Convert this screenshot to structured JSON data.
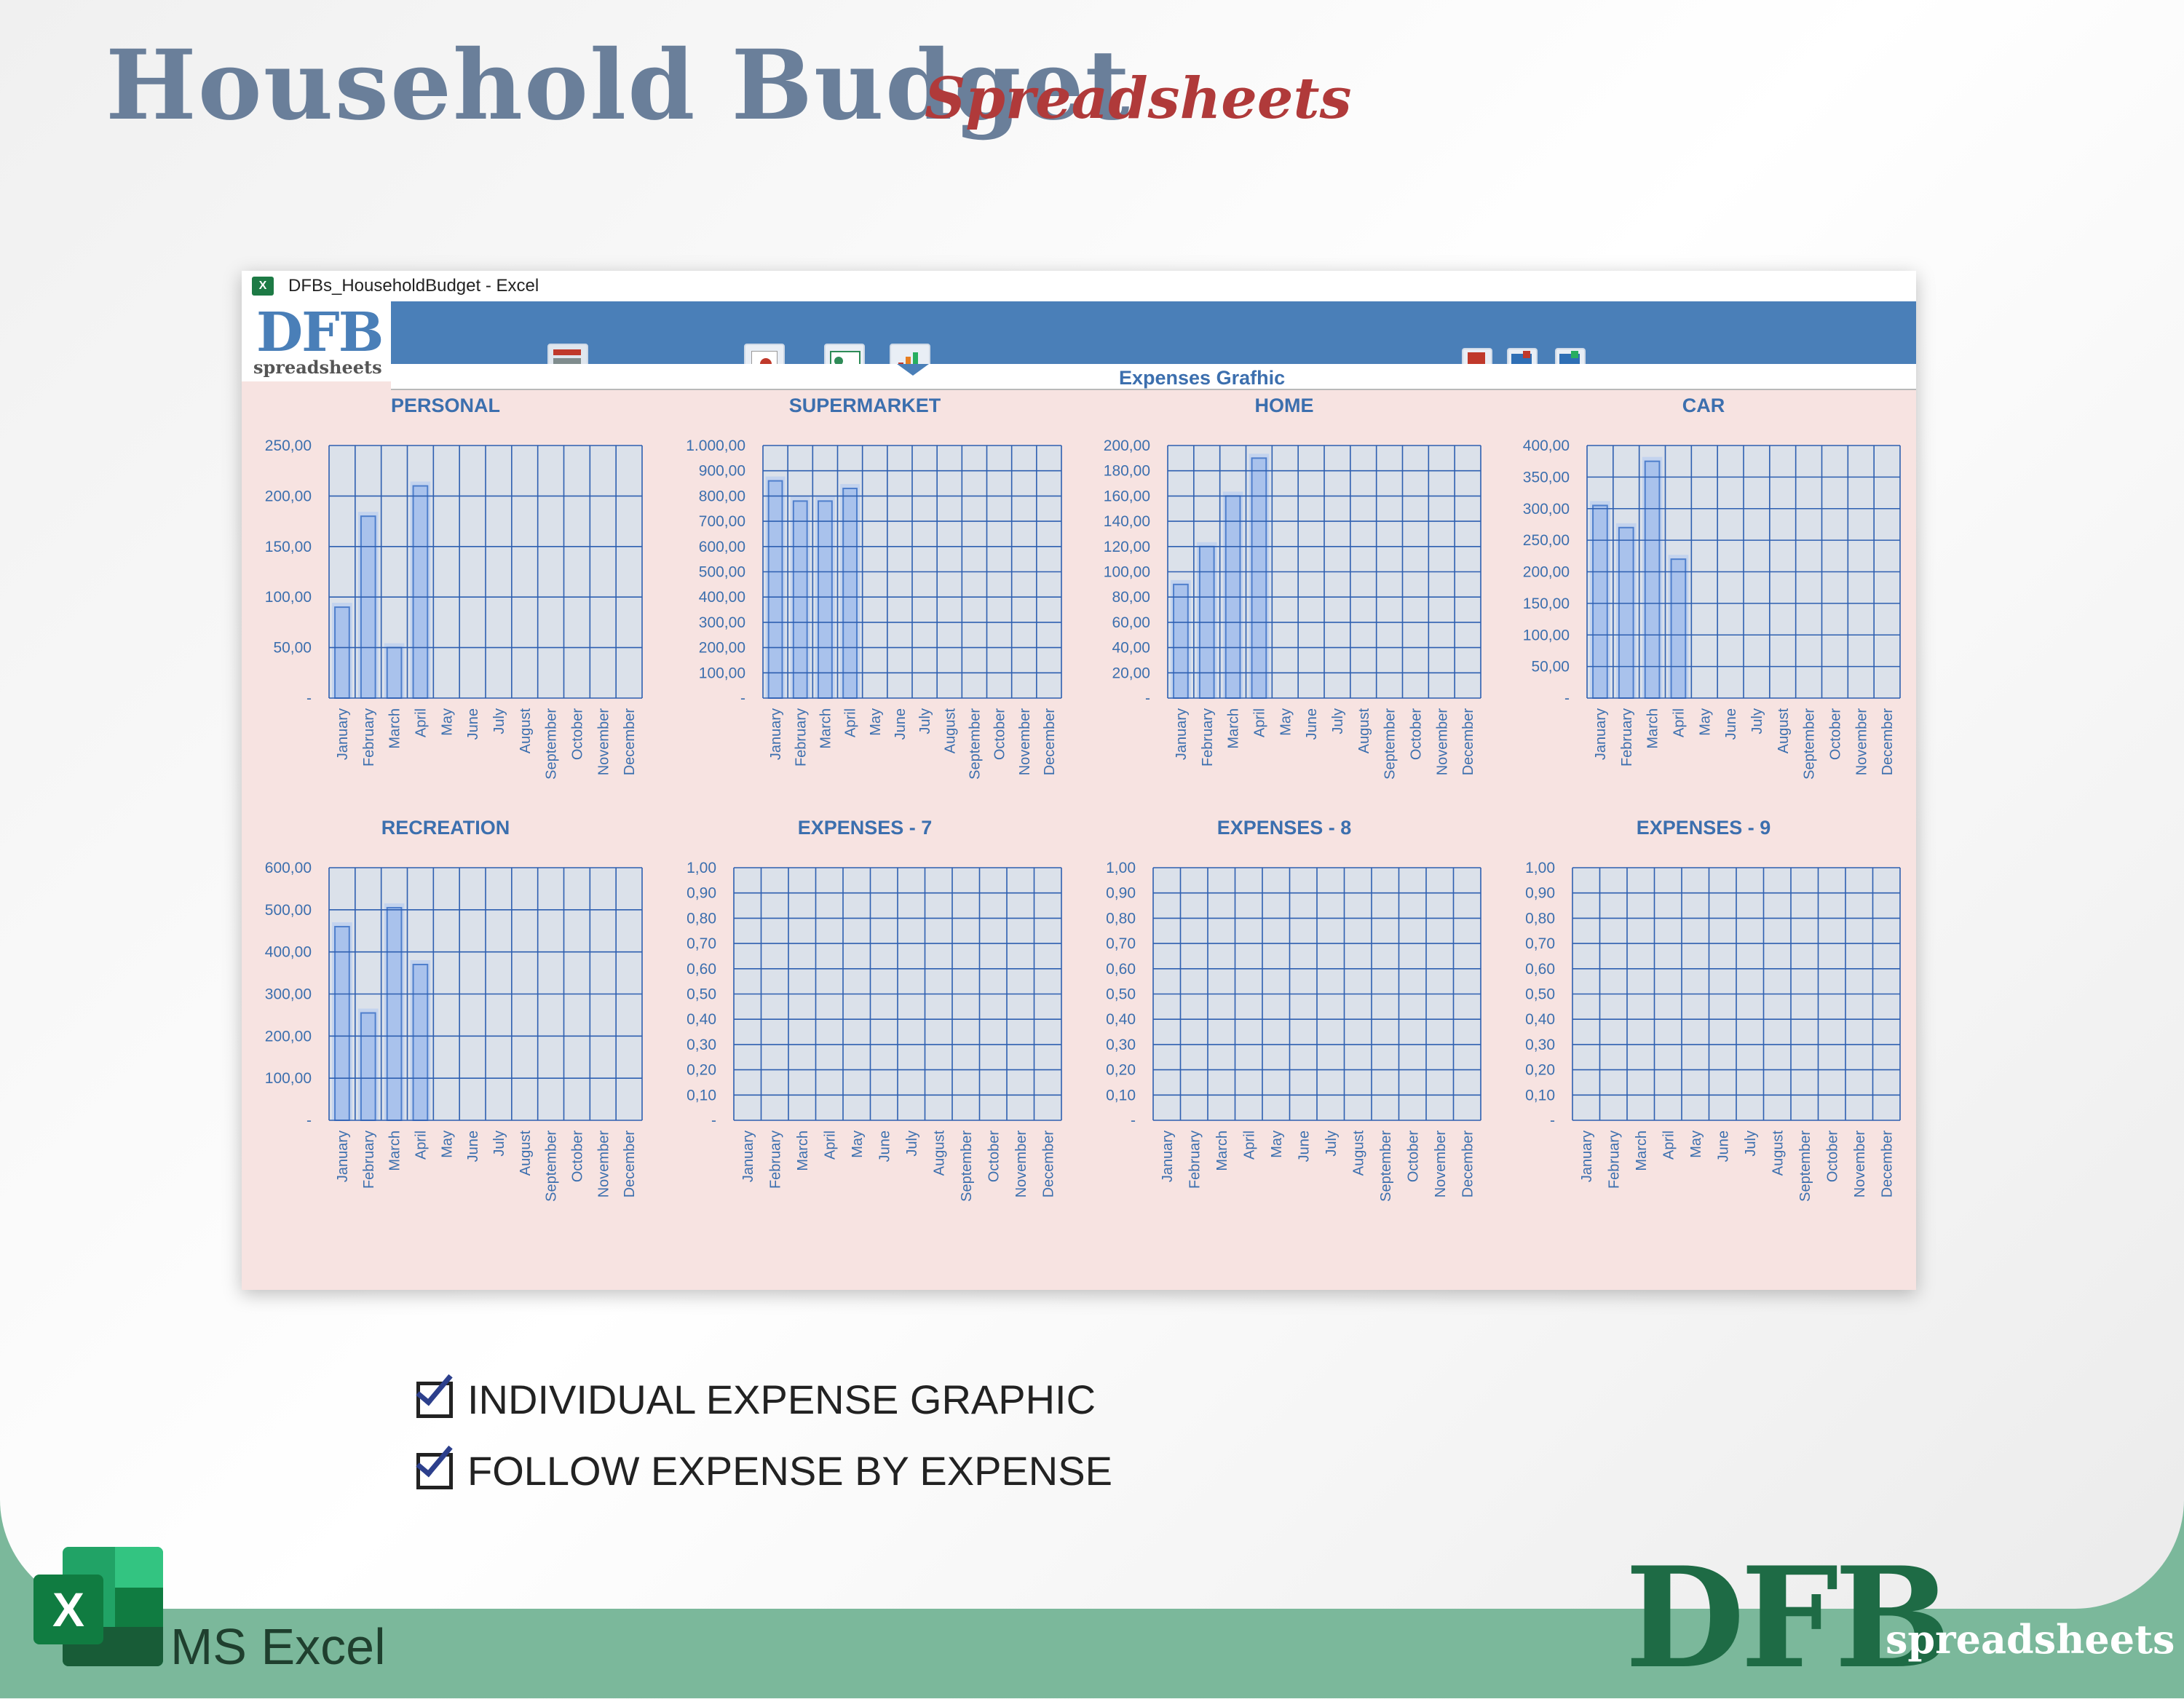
{
  "header": {
    "title": "Household Budget",
    "subtitle": "Spreadsheets"
  },
  "window": {
    "title": "DFBs_HouseholdBudget - Excel",
    "logo_main": "DFB",
    "logo_sub": "spreadsheets",
    "sheet_title": "Expenses Grafhic"
  },
  "ribbon_icons": [
    "budget-calculator-icon",
    "report-icon",
    "dashboard-icon",
    "chart-report-icon",
    "save-icon",
    "export-icon",
    "import-icon"
  ],
  "bullets": [
    "INDIVIDUAL EXPENSE GRAPHIC",
    "FOLLOW EXPENSE BY EXPENSE"
  ],
  "footer": {
    "app": "MS Excel",
    "brand": "DFB",
    "brand_sub": "spreadsheets"
  },
  "colors": {
    "ribbon": "#4a7fb8",
    "panel": "#f7e3e1",
    "bar": "#a9c2ec",
    "grid": "#2e5fb0",
    "title": "#3c6fae"
  },
  "chart_data": [
    {
      "type": "bar",
      "title": "PERSONAL",
      "categories": [
        "January",
        "February",
        "March",
        "April",
        "May",
        "June",
        "July",
        "August",
        "September",
        "October",
        "November",
        "December"
      ],
      "values": [
        90,
        180,
        50,
        210,
        null,
        null,
        null,
        null,
        null,
        null,
        null,
        null
      ],
      "ylim": [
        0,
        250
      ],
      "yticks": [
        "-",
        "50,00",
        "100,00",
        "150,00",
        "200,00",
        "250,00"
      ],
      "grid": true
    },
    {
      "type": "bar",
      "title": "SUPERMARKET",
      "categories": [
        "January",
        "February",
        "March",
        "April",
        "May",
        "June",
        "July",
        "August",
        "September",
        "October",
        "November",
        "December"
      ],
      "values": [
        860,
        780,
        780,
        830,
        null,
        null,
        null,
        null,
        null,
        null,
        null,
        null
      ],
      "ylim": [
        0,
        1000
      ],
      "yticks": [
        "-",
        "100,00",
        "200,00",
        "300,00",
        "400,00",
        "500,00",
        "600,00",
        "700,00",
        "800,00",
        "900,00",
        "1.000,00"
      ],
      "grid": true
    },
    {
      "type": "bar",
      "title": "HOME",
      "categories": [
        "January",
        "February",
        "March",
        "April",
        "May",
        "June",
        "July",
        "August",
        "September",
        "October",
        "November",
        "December"
      ],
      "values": [
        90,
        120,
        160,
        190,
        null,
        null,
        null,
        null,
        null,
        null,
        null,
        null
      ],
      "ylim": [
        0,
        200
      ],
      "yticks": [
        "-",
        "20,00",
        "40,00",
        "60,00",
        "80,00",
        "100,00",
        "120,00",
        "140,00",
        "160,00",
        "180,00",
        "200,00"
      ],
      "grid": true
    },
    {
      "type": "bar",
      "title": "CAR",
      "categories": [
        "January",
        "February",
        "March",
        "April",
        "May",
        "June",
        "July",
        "August",
        "September",
        "October",
        "November",
        "December"
      ],
      "values": [
        305,
        270,
        375,
        220,
        null,
        null,
        null,
        null,
        null,
        null,
        null,
        null
      ],
      "ylim": [
        0,
        400
      ],
      "yticks": [
        "-",
        "50,00",
        "100,00",
        "150,00",
        "200,00",
        "250,00",
        "300,00",
        "350,00",
        "400,00"
      ],
      "grid": true
    },
    {
      "type": "bar",
      "title": "RECREATION",
      "categories": [
        "January",
        "February",
        "March",
        "April",
        "May",
        "June",
        "July",
        "August",
        "September",
        "October",
        "November",
        "December"
      ],
      "values": [
        460,
        255,
        505,
        370,
        null,
        null,
        null,
        null,
        null,
        null,
        null,
        null
      ],
      "ylim": [
        0,
        600
      ],
      "yticks": [
        "-",
        "100,00",
        "200,00",
        "300,00",
        "400,00",
        "500,00",
        "600,00"
      ],
      "grid": true
    },
    {
      "type": "bar",
      "title": "EXPENSES - 7",
      "categories": [
        "January",
        "February",
        "March",
        "April",
        "May",
        "June",
        "July",
        "August",
        "September",
        "October",
        "November",
        "December"
      ],
      "values": [
        null,
        null,
        null,
        null,
        null,
        null,
        null,
        null,
        null,
        null,
        null,
        null
      ],
      "ylim": [
        0,
        1
      ],
      "yticks": [
        "-",
        "0,10",
        "0,20",
        "0,30",
        "0,40",
        "0,50",
        "0,60",
        "0,70",
        "0,80",
        "0,90",
        "1,00"
      ],
      "grid": true
    },
    {
      "type": "bar",
      "title": "EXPENSES - 8",
      "categories": [
        "January",
        "February",
        "March",
        "April",
        "May",
        "June",
        "July",
        "August",
        "September",
        "October",
        "November",
        "December"
      ],
      "values": [
        null,
        null,
        null,
        null,
        null,
        null,
        null,
        null,
        null,
        null,
        null,
        null
      ],
      "ylim": [
        0,
        1
      ],
      "yticks": [
        "-",
        "0,10",
        "0,20",
        "0,30",
        "0,40",
        "0,50",
        "0,60",
        "0,70",
        "0,80",
        "0,90",
        "1,00"
      ],
      "grid": true
    },
    {
      "type": "bar",
      "title": "EXPENSES - 9",
      "categories": [
        "January",
        "February",
        "March",
        "April",
        "May",
        "June",
        "July",
        "August",
        "September",
        "October",
        "November",
        "December"
      ],
      "values": [
        null,
        null,
        null,
        null,
        null,
        null,
        null,
        null,
        null,
        null,
        null,
        null
      ],
      "ylim": [
        0,
        1
      ],
      "yticks": [
        "-",
        "0,10",
        "0,20",
        "0,30",
        "0,40",
        "0,50",
        "0,60",
        "0,70",
        "0,80",
        "0,90",
        "1,00"
      ],
      "grid": true
    }
  ]
}
